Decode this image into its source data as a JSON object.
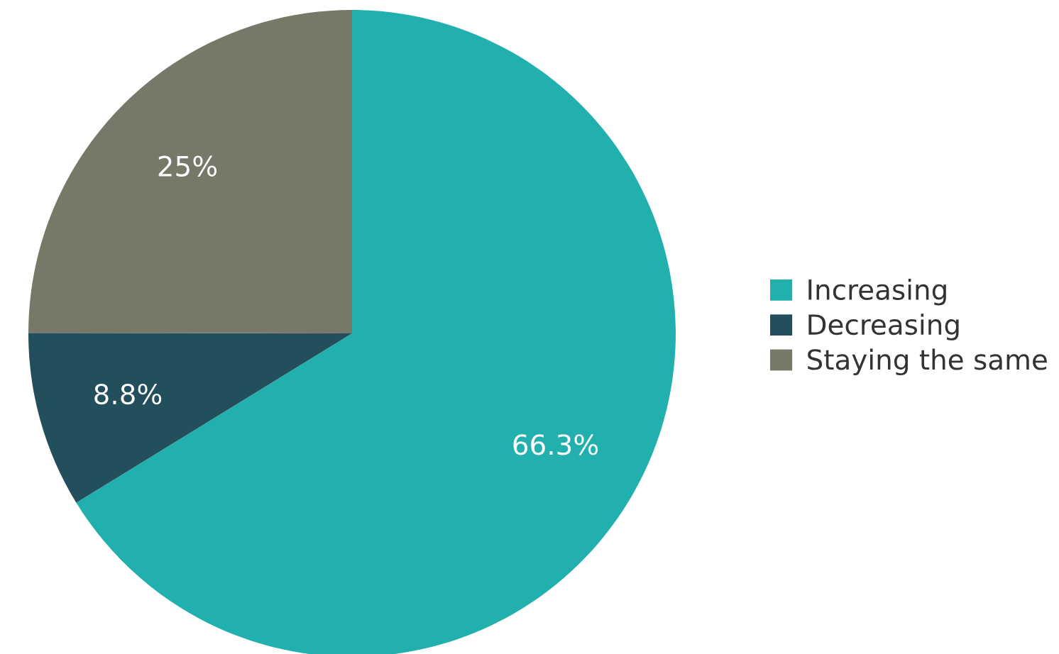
{
  "chart_data": {
    "type": "pie",
    "categories": [
      "Increasing",
      "Decreasing",
      "Staying the same"
    ],
    "values": [
      66.3,
      8.8,
      25
    ],
    "colors": [
      "#22b0af",
      "#234f5c",
      "#787868"
    ],
    "value_labels": [
      "66.3%",
      "8.8%",
      "25%"
    ],
    "legend": "right"
  }
}
